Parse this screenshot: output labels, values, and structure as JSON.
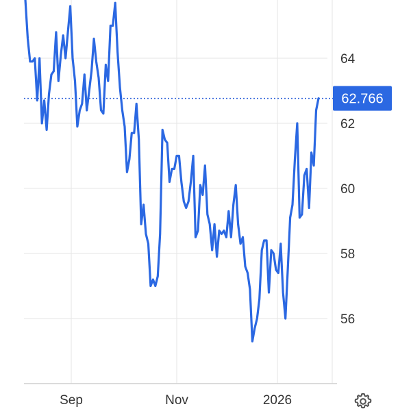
{
  "chart_data": {
    "type": "line",
    "title": "",
    "xlabel": "",
    "ylabel": "",
    "x_ticks": [
      "Sep",
      "Nov",
      "2026"
    ],
    "y_ticks": [
      56,
      58,
      60,
      62,
      64
    ],
    "ylim": [
      54,
      65.8
    ],
    "grid": true,
    "last_value": 62.766,
    "last_value_label": "62.766",
    "series": [
      {
        "name": "",
        "color": "#2b68e2",
        "values": [
          65.8,
          64.6,
          63.9,
          63.9,
          64.0,
          62.7,
          64.0,
          62.0,
          62.7,
          61.8,
          62.9,
          63.5,
          63.6,
          64.8,
          63.3,
          64.1,
          64.7,
          64.0,
          64.8,
          65.6,
          64.0,
          63.3,
          61.9,
          62.4,
          62.6,
          63.5,
          62.4,
          63.0,
          63.6,
          64.6,
          63.9,
          63.4,
          62.4,
          62.3,
          63.8,
          63.3,
          65.0,
          65.0,
          65.7,
          64.2,
          63.1,
          62.4,
          61.9,
          60.5,
          60.9,
          61.7,
          61.7,
          62.6,
          61.5,
          58.9,
          59.5,
          58.6,
          58.3,
          57.0,
          57.2,
          57.0,
          57.3,
          58.6,
          61.8,
          61.5,
          61.4,
          60.2,
          60.6,
          60.6,
          61.0,
          61.0,
          60.2,
          59.6,
          59.4,
          59.6,
          60.2,
          61.0,
          58.5,
          58.7,
          60.1,
          59.8,
          60.7,
          59.2,
          58.9,
          58.1,
          58.9,
          57.9,
          58.7,
          58.6,
          58.7,
          58.5,
          59.3,
          58.5,
          59.5,
          60.1,
          58.9,
          58.3,
          58.5,
          57.6,
          57.4,
          56.9,
          55.3,
          55.7,
          56.0,
          56.6,
          58.1,
          58.4,
          58.4,
          56.8,
          58.1,
          58.0,
          57.5,
          57.4,
          58.3,
          56.8,
          56.0,
          57.5,
          59.1,
          59.5,
          60.9,
          62.0,
          59.1,
          59.2,
          60.4,
          60.6,
          59.4,
          61.1,
          60.7,
          62.4,
          62.766
        ]
      }
    ]
  },
  "toolbar": {
    "settings_icon": "gear-icon"
  }
}
